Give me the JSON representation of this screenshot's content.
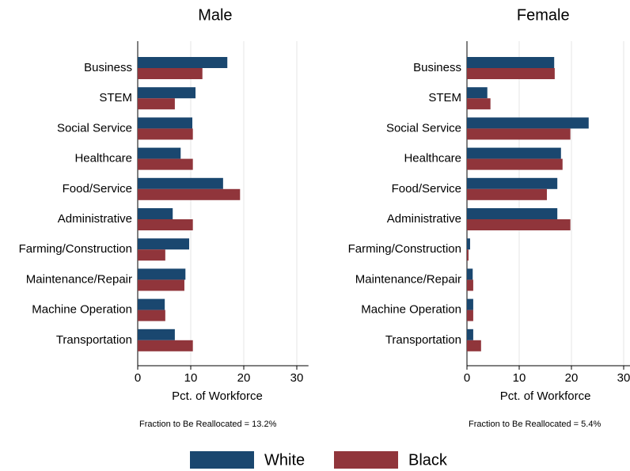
{
  "chart_data": [
    {
      "type": "barh",
      "title": "Male",
      "xlabel": "Pct. of Workforce",
      "annotation": "Fraction to Be Reallocated = 13.2%",
      "categories": [
        "Business",
        "STEM",
        "Social Service",
        "Healthcare",
        "Food/Service",
        "Administrative",
        "Farming/Construction",
        "Maintenance/Repair",
        "Machine Operation",
        "Transportation"
      ],
      "series": [
        {
          "name": "White",
          "color": "#1a476f",
          "values": [
            16.9,
            10.9,
            10.3,
            8.1,
            16.1,
            6.6,
            9.7,
            9.0,
            5.1,
            7.0
          ]
        },
        {
          "name": "Black",
          "color": "#90353b",
          "values": [
            12.2,
            7.0,
            10.4,
            10.4,
            19.3,
            10.4,
            5.2,
            8.8,
            5.2,
            10.4
          ]
        }
      ],
      "xlim": [
        0,
        32.2
      ],
      "xticks": [
        0,
        10,
        20,
        30
      ],
      "grid": true
    },
    {
      "type": "barh",
      "title": "Female",
      "xlabel": "Pct. of Workforce",
      "annotation": "Fraction to Be Reallocated = 5.4%",
      "categories": [
        "Business",
        "STEM",
        "Social Service",
        "Healthcare",
        "Food/Service",
        "Administrative",
        "Farming/Construction",
        "Maintenance/Repair",
        "Machine Operation",
        "Transportation"
      ],
      "series": [
        {
          "name": "White",
          "color": "#1a476f",
          "values": [
            16.7,
            3.9,
            23.3,
            18.0,
            17.3,
            17.3,
            0.6,
            1.1,
            1.2,
            1.2
          ]
        },
        {
          "name": "Black",
          "color": "#90353b",
          "values": [
            16.8,
            4.5,
            19.8,
            18.3,
            15.3,
            19.8,
            0.3,
            1.2,
            1.2,
            2.7
          ]
        }
      ],
      "xlim": [
        0,
        32.2
      ],
      "xticks": [
        0,
        10,
        20,
        30
      ],
      "grid": true
    }
  ]
}
